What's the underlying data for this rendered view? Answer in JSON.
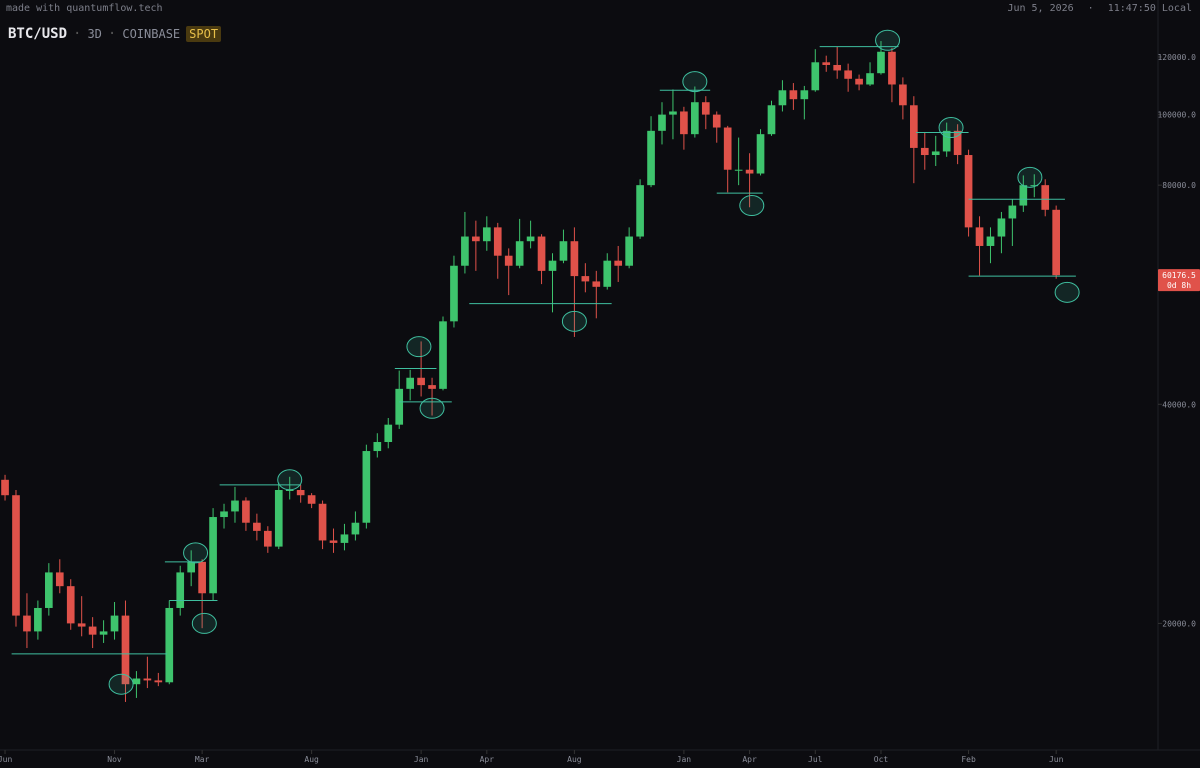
{
  "header": {
    "credit": "made with quantumflow.tech",
    "date": "Jun 5, 2026",
    "time": "11:47:50 Local"
  },
  "chart_data": {
    "type": "candlestick",
    "symbol": "BTC/USD",
    "interval": "3D",
    "exchange": "COINBASE",
    "market": "SPOT",
    "countdown": "0d 8h",
    "log_scale": true,
    "up_color": "#3ec46d",
    "down_color": "#e0524a",
    "level_color": "#3fbf9f",
    "xlim": [
      -0.23,
      52.65
    ],
    "ylim": [
      13400,
      143700
    ],
    "xticks": [
      {
        "value": 0,
        "label": "Jun"
      },
      {
        "value": 5,
        "label": "Nov"
      },
      {
        "value": 9,
        "label": "Mar"
      },
      {
        "value": 14,
        "label": "Aug"
      },
      {
        "value": 19,
        "label": "Jan"
      },
      {
        "value": 22,
        "label": "Apr"
      },
      {
        "value": 26,
        "label": "Aug"
      },
      {
        "value": 31,
        "label": "Jan"
      },
      {
        "value": 34,
        "label": "Apr"
      },
      {
        "value": 37,
        "label": "Jul"
      },
      {
        "value": 40,
        "label": "Oct"
      },
      {
        "value": 44,
        "label": "Feb"
      },
      {
        "value": 48,
        "label": "Jun"
      }
    ],
    "yticks": [
      {
        "value": 20000,
        "label": "20000.0"
      },
      {
        "value": 40000,
        "label": "40000.0"
      },
      {
        "value": 80000,
        "label": "80000.0"
      },
      {
        "value": 100000,
        "label": "100000.0"
      },
      {
        "value": 120000,
        "label": "120000.0"
      }
    ],
    "x": [
      0,
      0.5,
      1,
      1.5,
      2,
      2.5,
      3,
      3.5,
      4,
      4.5,
      5,
      5.5,
      6,
      6.5,
      7,
      7.5,
      8,
      8.5,
      9,
      9.5,
      10,
      10.5,
      11,
      11.5,
      12,
      12.5,
      13,
      13.5,
      14,
      14.5,
      15,
      15.5,
      16,
      16.5,
      17,
      17.5,
      18,
      18.5,
      19,
      19.5,
      20,
      20.5,
      21,
      21.5,
      22,
      22.5,
      23,
      23.5,
      24,
      24.5,
      25,
      25.5,
      26,
      26.5,
      27,
      27.5,
      28,
      28.5,
      29,
      29.5,
      30,
      30.5,
      31,
      31.5,
      32,
      32.5,
      33,
      33.5,
      34,
      34.5,
      35,
      35.5,
      36,
      36.5,
      37,
      37.5,
      38,
      38.5,
      39,
      39.5,
      40,
      40.5,
      41,
      41.5,
      42,
      42.5,
      43,
      43.5,
      44,
      44.5,
      45,
      45.5,
      46,
      46.5,
      47,
      47.5,
      48
    ],
    "ohlc": [
      [
        31500,
        32000,
        29500,
        30000
      ],
      [
        30000,
        30500,
        19800,
        20500
      ],
      [
        20500,
        22000,
        18500,
        19500
      ],
      [
        19500,
        21500,
        19000,
        21000
      ],
      [
        21000,
        24200,
        20500,
        23500
      ],
      [
        23500,
        24500,
        22000,
        22500
      ],
      [
        22500,
        23000,
        19600,
        20000
      ],
      [
        20000,
        21800,
        19200,
        19800
      ],
      [
        19800,
        20400,
        18500,
        19300
      ],
      [
        19300,
        20200,
        18800,
        19500
      ],
      [
        19500,
        21400,
        19000,
        20500
      ],
      [
        20500,
        21500,
        15600,
        16500
      ],
      [
        16500,
        17200,
        15800,
        16800
      ],
      [
        16800,
        18000,
        16300,
        16700
      ],
      [
        16700,
        17100,
        16400,
        16600
      ],
      [
        16600,
        21500,
        16500,
        21000
      ],
      [
        21000,
        24000,
        20500,
        23500
      ],
      [
        23500,
        25200,
        22500,
        24300
      ],
      [
        24300,
        24500,
        19700,
        22000
      ],
      [
        22000,
        28800,
        21500,
        28000
      ],
      [
        28000,
        29200,
        27000,
        28500
      ],
      [
        28500,
        30800,
        27500,
        29500
      ],
      [
        29500,
        29800,
        26800,
        27500
      ],
      [
        27500,
        28300,
        26000,
        26800
      ],
      [
        26800,
        27200,
        25000,
        25500
      ],
      [
        25500,
        31200,
        25300,
        30500
      ],
      [
        30500,
        31800,
        29600,
        30500
      ],
      [
        30500,
        31000,
        29300,
        30000
      ],
      [
        30000,
        30200,
        28800,
        29200
      ],
      [
        29200,
        29500,
        25300,
        26000
      ],
      [
        26000,
        27000,
        25000,
        25800
      ],
      [
        25800,
        27400,
        25200,
        26500
      ],
      [
        26500,
        28500,
        26000,
        27500
      ],
      [
        27500,
        35200,
        27000,
        34500
      ],
      [
        34500,
        36500,
        33800,
        35500
      ],
      [
        35500,
        38300,
        34800,
        37500
      ],
      [
        37500,
        44500,
        37000,
        42000
      ],
      [
        42000,
        44600,
        40500,
        43500
      ],
      [
        43500,
        48800,
        41000,
        42500
      ],
      [
        42500,
        43500,
        38600,
        42000
      ],
      [
        42000,
        52800,
        41800,
        52000
      ],
      [
        52000,
        64000,
        51000,
        62000
      ],
      [
        62000,
        73500,
        60500,
        68000
      ],
      [
        68000,
        71500,
        61000,
        67000
      ],
      [
        67000,
        72500,
        65000,
        70000
      ],
      [
        70000,
        71000,
        59500,
        64000
      ],
      [
        64000,
        65500,
        56500,
        62000
      ],
      [
        62000,
        71900,
        61500,
        67000
      ],
      [
        67000,
        71500,
        65500,
        68000
      ],
      [
        68000,
        68500,
        58500,
        61000
      ],
      [
        61000,
        64500,
        53500,
        63000
      ],
      [
        63000,
        69500,
        62500,
        67000
      ],
      [
        67000,
        70000,
        49500,
        60000
      ],
      [
        60000,
        62500,
        57000,
        59000
      ],
      [
        59000,
        61000,
        52500,
        58000
      ],
      [
        58000,
        64500,
        57500,
        63000
      ],
      [
        63000,
        66000,
        58900,
        62000
      ],
      [
        62000,
        70000,
        61500,
        68000
      ],
      [
        68000,
        81500,
        67500,
        80000
      ],
      [
        80000,
        99500,
        79500,
        95000
      ],
      [
        95000,
        104000,
        91000,
        100000
      ],
      [
        100000,
        108300,
        92500,
        101000
      ],
      [
        101000,
        102500,
        89500,
        94000
      ],
      [
        94000,
        109300,
        93000,
        104000
      ],
      [
        104000,
        106000,
        95500,
        100000
      ],
      [
        100000,
        101000,
        91500,
        96000
      ],
      [
        96000,
        96500,
        78200,
        84000
      ],
      [
        84000,
        93000,
        80000,
        84000
      ],
      [
        84000,
        88500,
        74600,
        83000
      ],
      [
        83000,
        95500,
        82500,
        94000
      ],
      [
        94000,
        104500,
        93500,
        103000
      ],
      [
        103000,
        111500,
        101000,
        108000
      ],
      [
        108000,
        110500,
        101500,
        105000
      ],
      [
        105000,
        109500,
        98500,
        108000
      ],
      [
        108000,
        123000,
        107500,
        118000
      ],
      [
        118000,
        120500,
        114500,
        117000
      ],
      [
        117000,
        124000,
        112000,
        115000
      ],
      [
        115000,
        117500,
        107500,
        112000
      ],
      [
        112000,
        113500,
        108000,
        110000
      ],
      [
        110000,
        118000,
        109500,
        114000
      ],
      [
        114000,
        126200,
        113500,
        122000
      ],
      [
        122000,
        123500,
        104000,
        110000
      ],
      [
        110000,
        112500,
        98500,
        103000
      ],
      [
        103000,
        106000,
        80500,
        90000
      ],
      [
        90000,
        94500,
        84000,
        88000
      ],
      [
        88000,
        93500,
        85000,
        89000
      ],
      [
        89000,
        97500,
        87500,
        95000
      ],
      [
        95000,
        97000,
        85500,
        88000
      ],
      [
        88000,
        89500,
        68000,
        70000
      ],
      [
        70000,
        72500,
        60100,
        66000
      ],
      [
        66000,
        70000,
        62500,
        68000
      ],
      [
        68000,
        73500,
        64500,
        72000
      ],
      [
        72000,
        76500,
        66000,
        75000
      ],
      [
        75000,
        82500,
        73500,
        80000
      ],
      [
        80000,
        82800,
        77000,
        80000
      ],
      [
        80000,
        81500,
        72500,
        74000
      ],
      [
        74000,
        75000,
        59500,
        60176.5
      ]
    ],
    "levels": [
      {
        "x": [
          0.3,
          7.4
        ],
        "price": 18160
      },
      {
        "x": [
          7.5,
          9.7
        ],
        "price": 21500
      },
      {
        "x": [
          7.3,
          8.9
        ],
        "price": 24300
      },
      {
        "x": [
          9.8,
          13.5
        ],
        "price": 31000
      },
      {
        "x": [
          18,
          20.4
        ],
        "price": 40300
      },
      {
        "x": [
          17.8,
          19.7
        ],
        "price": 44800
      },
      {
        "x": [
          21.2,
          27.7
        ],
        "price": 55000
      },
      {
        "x": [
          29.9,
          32.2
        ],
        "price": 108000
      },
      {
        "x": [
          32.5,
          34.6
        ],
        "price": 78000
      },
      {
        "x": [
          37.2,
          40.8
        ],
        "price": 124000
      },
      {
        "x": [
          41.6,
          44
        ],
        "price": 94500
      },
      {
        "x": [
          44,
          48.4
        ],
        "price": 76500
      },
      {
        "x": [
          44,
          48.9
        ],
        "price": 60000
      }
    ],
    "highlights": [
      {
        "x": 5.3,
        "price": 16500
      },
      {
        "x": 8.7,
        "price": 25000
      },
      {
        "x": 9.1,
        "price": 20000
      },
      {
        "x": 13,
        "price": 31500
      },
      {
        "x": 18.9,
        "price": 48000
      },
      {
        "x": 19.5,
        "price": 39500
      },
      {
        "x": 26,
        "price": 52000
      },
      {
        "x": 31.5,
        "price": 111000
      },
      {
        "x": 34.1,
        "price": 75000
      },
      {
        "x": 40.3,
        "price": 126500
      },
      {
        "x": 43.2,
        "price": 96000
      },
      {
        "x": 46.8,
        "price": 82000
      },
      {
        "x": 48.5,
        "price": 57000
      }
    ]
  }
}
